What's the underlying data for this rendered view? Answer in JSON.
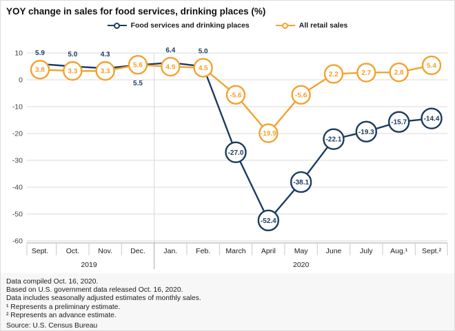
{
  "title": "YOY change in sales for food services, drinking places (%)",
  "colors": {
    "navy": "#1b3b5e",
    "orange": "#f3a22e",
    "grid": "#d9d9d9",
    "axis": "#a6a6a6",
    "tick": "#c9c9c9",
    "text": "#1a1a1a",
    "axis_text": "#404040",
    "footer_bg": "#f7f7f7"
  },
  "legend": {
    "items": [
      {
        "label": "Food services and drinking places"
      },
      {
        "label": "All retail sales"
      }
    ]
  },
  "chart_data": {
    "type": "line",
    "title": "YOY change in sales for food services, drinking places (%)",
    "categories": [
      "Sept.",
      "Oct.",
      "Nov.",
      "Dec.",
      "Jan.",
      "Feb.",
      "March",
      "April",
      "May",
      "June",
      "July",
      "Aug.¹",
      "Sept.²"
    ],
    "year_groups": [
      {
        "label": "2019",
        "from": 0,
        "to": 3
      },
      {
        "label": "2020",
        "from": 4,
        "to": 12
      }
    ],
    "yticks": [
      10,
      0,
      -10,
      -20,
      -30,
      -40,
      -50,
      -60
    ],
    "ylim": [
      -60,
      10
    ],
    "grid": true,
    "legend_position": "top",
    "series": [
      {
        "name": "Food services and drinking places",
        "color": "#1b3b5e",
        "values": [
          5.9,
          5.0,
          4.3,
          5.5,
          6.4,
          5.0,
          -27.0,
          -52.4,
          -38.1,
          -22.1,
          -19.3,
          -15.7,
          -14.4
        ],
        "label_style": [
          "above",
          "above",
          "above",
          "below",
          "above",
          "above",
          "circle",
          "circle",
          "circle",
          "circle",
          "circle",
          "circle",
          "circle"
        ]
      },
      {
        "name": "All retail sales",
        "color": "#f3a22e",
        "values": [
          3.8,
          3.3,
          3.3,
          5.6,
          4.9,
          4.5,
          -5.6,
          -19.9,
          -5.6,
          2.2,
          2.7,
          2.8,
          5.4
        ],
        "label_style": [
          "circle",
          "circle",
          "circle",
          "circle",
          "circle",
          "circle",
          "circle",
          "circle",
          "circle",
          "circle",
          "circle",
          "circle",
          "circle"
        ]
      }
    ]
  },
  "footer": {
    "lines": [
      "Data compiled Oct. 16, 2020.",
      "Based on U.S. government data released Oct. 16, 2020.",
      "Data includes seasonally adjusted estimates of monthly sales.",
      "¹ Represents a preliminary estimate.",
      "² Represents an advance estimate."
    ],
    "source": "Source: U.S. Census Bureau"
  }
}
